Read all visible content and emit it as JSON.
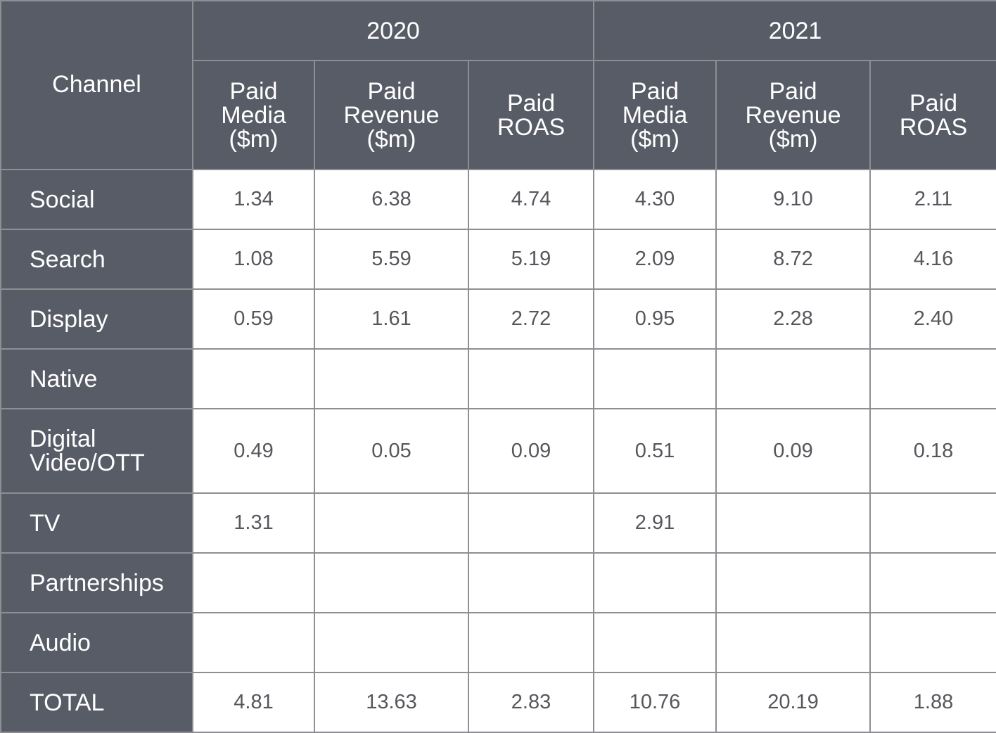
{
  "chart_data": {
    "type": "table",
    "corner_header": "Channel",
    "years": [
      "2020",
      "2021"
    ],
    "columns": [
      "Paid Media ($m)",
      "Paid Revenue ($m)",
      "Paid ROAS"
    ],
    "column_header_lines": [
      [
        "Paid",
        "Media",
        "($m)"
      ],
      [
        "Paid",
        "Revenue",
        "($m)"
      ],
      [
        "Paid",
        "ROAS"
      ]
    ],
    "rows": [
      {
        "channel_lines": [
          "Social"
        ],
        "values": [
          "1.34",
          "6.38",
          "4.74",
          "4.30",
          "9.10",
          "2.11"
        ]
      },
      {
        "channel_lines": [
          "Search"
        ],
        "values": [
          "1.08",
          "5.59",
          "5.19",
          "2.09",
          "8.72",
          "4.16"
        ]
      },
      {
        "channel_lines": [
          "Display"
        ],
        "values": [
          "0.59",
          "1.61",
          "2.72",
          "0.95",
          "2.28",
          "2.40"
        ]
      },
      {
        "channel_lines": [
          "Native"
        ],
        "values": [
          "",
          "",
          "",
          "",
          "",
          ""
        ]
      },
      {
        "channel_lines": [
          "Digital",
          "Video/OTT"
        ],
        "values": [
          "0.49",
          "0.05",
          "0.09",
          "0.51",
          "0.09",
          "0.18"
        ]
      },
      {
        "channel_lines": [
          "TV"
        ],
        "values": [
          "1.31",
          "",
          "",
          "2.91",
          "",
          ""
        ]
      },
      {
        "channel_lines": [
          "Partnerships"
        ],
        "values": [
          "",
          "",
          "",
          "",
          "",
          ""
        ]
      },
      {
        "channel_lines": [
          "Audio"
        ],
        "values": [
          "",
          "",
          "",
          "",
          "",
          ""
        ]
      },
      {
        "channel_lines": [
          "TOTAL"
        ],
        "values": [
          "4.81",
          "13.63",
          "2.83",
          "10.76",
          "20.19",
          "1.88"
        ]
      }
    ]
  }
}
